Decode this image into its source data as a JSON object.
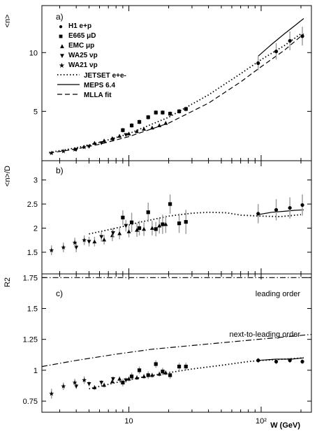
{
  "chart_data": [
    {
      "type": "scatter",
      "panel_label": "a)",
      "ylabel": "<n>",
      "xscale": "log",
      "xlim": [
        2.2,
        240
      ],
      "ylim": [
        0.8,
        14
      ],
      "yticks": [
        5,
        10
      ],
      "ytick_labels": [
        "5",
        "10"
      ],
      "legend_placement": "top-left",
      "legend": {
        "h1": "H1 e+p",
        "e665": "E665 μD",
        "emc": "EMC μp",
        "wa25": "WA25 νp",
        "wa21": "WA21 νp",
        "jetset": "JETSET e+e-",
        "meps": "MEPS 6.4",
        "mlla": "MLLA fit"
      },
      "series": [
        {
          "key": "H1",
          "marker": "circle",
          "x": [
            95,
            130,
            165,
            205
          ],
          "y": [
            9.1,
            10.1,
            11.0,
            11.4
          ],
          "yerr": [
            0.6,
            0.7,
            0.8,
            0.8
          ]
        },
        {
          "key": "E665",
          "marker": "square",
          "x": [
            9.0,
            10.5,
            12.0,
            14.0,
            16.0,
            18.0,
            20.5,
            24.0,
            27.0
          ],
          "y": [
            3.4,
            3.8,
            4.1,
            4.5,
            4.9,
            4.9,
            4.8,
            5.0,
            5.2
          ],
          "yerr": [
            0.2,
            0.2,
            0.2,
            0.2,
            0.2,
            0.2,
            0.2,
            0.2,
            0.2
          ]
        },
        {
          "key": "EMC",
          "marker": "triangle-up",
          "x": [
            5.5,
            6.5,
            7.5,
            8.5,
            10.0,
            11.5,
            13.0,
            15.0,
            17.0,
            19.0
          ],
          "y": [
            2.3,
            2.5,
            2.7,
            2.9,
            3.1,
            3.3,
            3.5,
            3.6,
            3.8,
            4.0
          ],
          "yerr": [
            0.15,
            0.15,
            0.15,
            0.15,
            0.15,
            0.15,
            0.15,
            0.15,
            0.15,
            0.15
          ]
        },
        {
          "key": "WA25",
          "marker": "triangle-down",
          "x": [
            4.0,
            5.0,
            6.2,
            7.6,
            9.5
          ],
          "y": [
            1.75,
            2.0,
            2.3,
            2.6,
            3.0
          ],
          "yerr": [
            0.1,
            0.1,
            0.1,
            0.1,
            0.1
          ]
        },
        {
          "key": "WA21",
          "marker": "star",
          "x": [
            2.6,
            3.2,
            3.9,
            4.6
          ],
          "y": [
            1.45,
            1.6,
            1.75,
            1.95
          ],
          "yerr": [
            0.1,
            0.1,
            0.1,
            0.1
          ]
        }
      ],
      "curves": [
        {
          "key": "JETSET",
          "style": "dotted",
          "x": [
            2.5,
            4,
            6,
            10,
            20,
            40,
            70,
            100,
            150,
            200
          ],
          "y": [
            1.5,
            1.9,
            2.35,
            3.1,
            4.5,
            6.4,
            8.2,
            9.4,
            10.6,
            11.6
          ]
        },
        {
          "key": "MEPS",
          "style": "solid",
          "x": [
            95,
            120,
            150,
            180,
            210
          ],
          "y": [
            9.7,
            10.7,
            11.6,
            12.3,
            12.9
          ]
        },
        {
          "key": "MLLA",
          "style": "dashed",
          "x": [
            2.5,
            4,
            6,
            10,
            20,
            40,
            70,
            100,
            150,
            210
          ],
          "y": [
            1.45,
            1.8,
            2.2,
            2.85,
            4.0,
            5.7,
            7.5,
            8.8,
            10.2,
            11.6
          ]
        }
      ]
    },
    {
      "type": "scatter",
      "panel_label": "b)",
      "ylabel": "<n>/D",
      "xscale": "log",
      "xlim": [
        2.2,
        240
      ],
      "ylim": [
        1.05,
        3.4
      ],
      "yticks": [
        1.5,
        2,
        2.5,
        3
      ],
      "ytick_labels": [
        "1.5",
        "2",
        "2.5",
        "3"
      ],
      "series": [
        {
          "key": "H1",
          "marker": "circle",
          "x": [
            95,
            130,
            165,
            205
          ],
          "y": [
            2.3,
            2.38,
            2.42,
            2.48
          ],
          "yerr": [
            0.2,
            0.22,
            0.22,
            0.22
          ]
        },
        {
          "key": "E665",
          "marker": "square",
          "x": [
            9.0,
            10.5,
            12.0,
            14.0,
            16.0,
            18.0,
            20.5,
            24.0,
            27.0
          ],
          "y": [
            2.22,
            2.12,
            2.0,
            2.33,
            1.98,
            2.08,
            2.5,
            2.1,
            2.13
          ],
          "yerr": [
            0.15,
            0.2,
            0.15,
            0.2,
            0.15,
            0.2,
            0.2,
            0.2,
            0.25
          ]
        },
        {
          "key": "EMC",
          "marker": "triangle-up",
          "x": [
            5.5,
            6.5,
            7.5,
            8.5,
            10.0,
            11.5,
            13.0,
            15.0,
            17.0,
            19.0
          ],
          "y": [
            1.72,
            1.76,
            1.85,
            1.89,
            1.93,
            1.96,
            1.98,
            2.0,
            2.05,
            2.08
          ],
          "yerr": [
            0.1,
            0.1,
            0.12,
            0.12,
            0.12,
            0.14,
            0.14,
            0.15,
            0.16,
            0.18
          ]
        },
        {
          "key": "WA25",
          "marker": "triangle-down",
          "x": [
            4.0,
            5.0,
            6.2,
            7.6,
            9.5
          ],
          "y": [
            1.6,
            1.72,
            1.82,
            1.9,
            2.05
          ],
          "yerr": [
            0.1,
            0.1,
            0.1,
            0.1,
            0.12
          ]
        },
        {
          "key": "WA21",
          "marker": "star",
          "x": [
            2.6,
            3.2,
            3.9,
            4.6
          ],
          "y": [
            1.54,
            1.6,
            1.7,
            1.75
          ],
          "yerr": [
            0.1,
            0.1,
            0.1,
            0.1
          ]
        }
      ],
      "curves": [
        {
          "key": "JETSET",
          "style": "dotted",
          "x": [
            5,
            8,
            12,
            20,
            30,
            40,
            55,
            70,
            100,
            140,
            200
          ],
          "y": [
            1.88,
            2.0,
            2.12,
            2.25,
            2.31,
            2.33,
            2.32,
            2.27,
            2.25,
            2.24,
            2.28
          ]
        },
        {
          "key": "MEPS",
          "style": "solid",
          "x": [
            95,
            120,
            150,
            180,
            210
          ],
          "y": [
            2.28,
            2.33,
            2.35,
            2.37,
            2.38
          ]
        }
      ]
    },
    {
      "type": "scatter",
      "panel_label": "c)",
      "ylabel": "R2",
      "xlabel": "W (GeV)",
      "xscale": "log",
      "xlim": [
        2.2,
        240
      ],
      "ylim": [
        0.66,
        1.78
      ],
      "yticks": [
        0.75,
        1,
        1.25,
        1.5,
        1.75
      ],
      "ytick_labels": [
        "0.75",
        "1",
        "1.25",
        "1.5",
        "1.75"
      ],
      "xtick_labels": [
        "10",
        "10²"
      ],
      "xticks": [
        10,
        100
      ],
      "annotations": {
        "lo": "leading order",
        "nlo": "next-to-leading order"
      },
      "series": [
        {
          "key": "H1",
          "marker": "circle",
          "x": [
            95,
            130,
            165,
            205
          ],
          "y": [
            1.08,
            1.07,
            1.08,
            1.07
          ],
          "yerr": [
            0.02,
            0.02,
            0.02,
            0.02
          ]
        },
        {
          "key": "E665",
          "marker": "square",
          "x": [
            9.0,
            10.5,
            12.0,
            14.0,
            16.0,
            18.0,
            20.5,
            24.0,
            27.0
          ],
          "y": [
            0.9,
            0.95,
            1.0,
            0.96,
            1.05,
            0.99,
            0.96,
            1.03,
            1.03
          ],
          "yerr": [
            0.03,
            0.03,
            0.03,
            0.03,
            0.03,
            0.03,
            0.03,
            0.03,
            0.03
          ]
        },
        {
          "key": "EMC",
          "marker": "triangle-up",
          "x": [
            5.5,
            6.5,
            7.5,
            8.5,
            10.0,
            11.5,
            13.0,
            15.0,
            17.0,
            19.0
          ],
          "y": [
            0.86,
            0.88,
            0.91,
            0.93,
            0.93,
            0.94,
            0.95,
            0.96,
            0.97,
            0.98
          ],
          "yerr": [
            0.02,
            0.02,
            0.02,
            0.02,
            0.02,
            0.02,
            0.02,
            0.02,
            0.02,
            0.02
          ]
        },
        {
          "key": "WA25",
          "marker": "triangle-down",
          "x": [
            4.0,
            5.0,
            6.2,
            7.6,
            9.5
          ],
          "y": [
            0.87,
            0.89,
            0.9,
            0.93,
            0.92
          ],
          "yerr": [
            0.02,
            0.02,
            0.02,
            0.02,
            0.02
          ]
        },
        {
          "key": "WA21",
          "marker": "star",
          "x": [
            2.6,
            3.2,
            3.9,
            4.6
          ],
          "y": [
            0.81,
            0.87,
            0.9,
            0.92
          ],
          "yerr": [
            0.04,
            0.03,
            0.03,
            0.03
          ]
        }
      ],
      "curves": [
        {
          "key": "JETSET",
          "style": "dotted",
          "x": [
            5,
            8,
            12,
            20,
            30,
            50,
            80,
            100,
            150,
            210
          ],
          "y": [
            0.85,
            0.9,
            0.94,
            0.98,
            1.01,
            1.04,
            1.07,
            1.08,
            1.09,
            1.1
          ]
        },
        {
          "key": "MEPS",
          "style": "solid",
          "x": [
            95,
            130,
            170,
            210
          ],
          "y": [
            1.08,
            1.09,
            1.09,
            1.1
          ]
        },
        {
          "key": "LO",
          "style": "dash-dot",
          "x": [
            2.2,
            240
          ],
          "y": [
            1.75,
            1.75
          ]
        },
        {
          "key": "NLO",
          "style": "dash-dot",
          "x": [
            2.2,
            4,
            8,
            15,
            30,
            60,
            120,
            240
          ],
          "y": [
            1.03,
            1.08,
            1.13,
            1.17,
            1.2,
            1.23,
            1.26,
            1.29
          ]
        }
      ]
    }
  ]
}
